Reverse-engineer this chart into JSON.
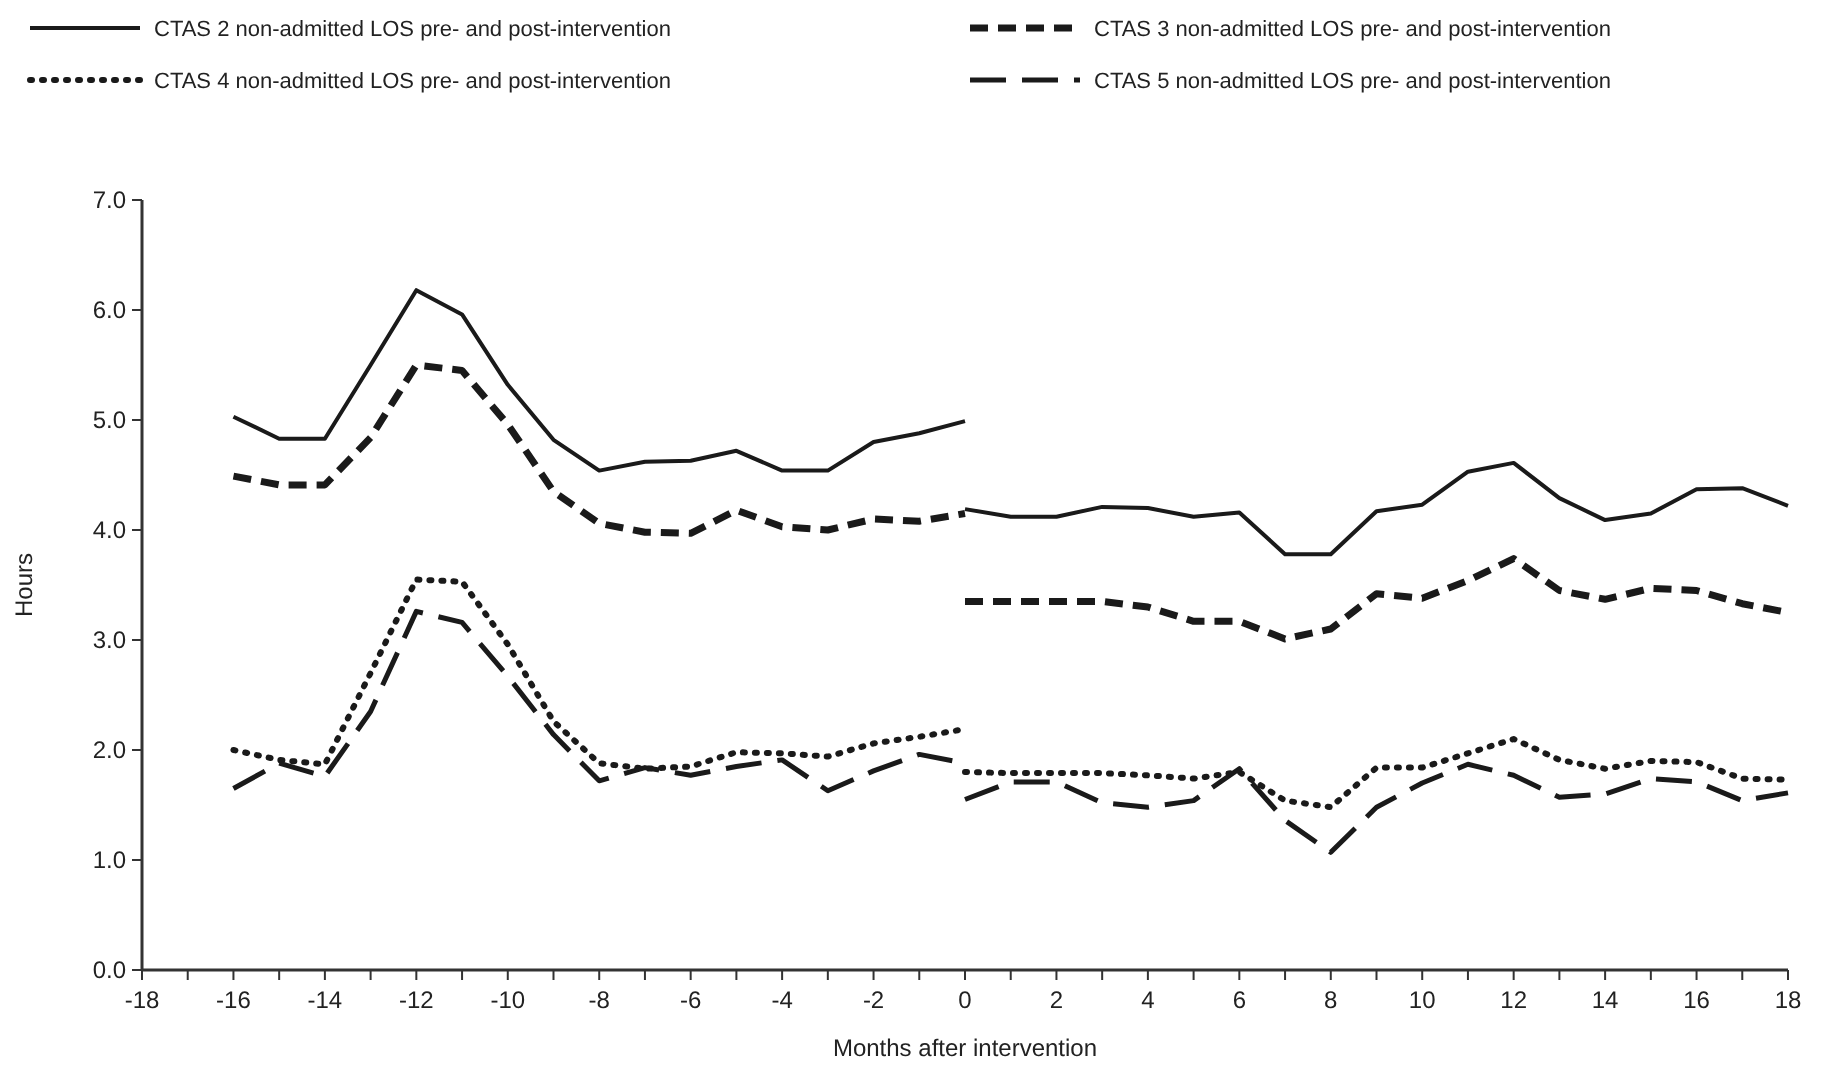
{
  "chart_data": {
    "type": "line",
    "xlabel": "Months after intervention",
    "ylabel": "Hours",
    "xlim": [
      -18,
      18
    ],
    "xticks": [
      -18,
      {
        "value": -17,
        "label": null
      },
      -16,
      {
        "value": -15,
        "label": null
      },
      -14,
      {
        "value": -13,
        "label": null
      },
      -12,
      {
        "value": -11,
        "label": null
      },
      -10,
      {
        "value": -9,
        "label": null
      },
      -8,
      {
        "value": -7,
        "label": null
      },
      -6,
      {
        "value": -5,
        "label": null
      },
      -4,
      {
        "value": -3,
        "label": null
      },
      -2,
      {
        "value": -1,
        "label": null
      },
      0,
      {
        "value": 1,
        "label": null
      },
      2,
      {
        "value": 3,
        "label": null
      },
      4,
      {
        "value": 5,
        "label": null
      },
      6,
      {
        "value": 7,
        "label": null
      },
      8,
      {
        "value": 9,
        "label": null
      },
      10,
      {
        "value": 11,
        "label": null
      },
      12,
      {
        "value": 13,
        "label": null
      },
      14,
      {
        "value": 15,
        "label": null
      },
      16,
      {
        "value": 17,
        "label": null
      },
      18
    ],
    "ylim": [
      0,
      7
    ],
    "yticks": [
      {
        "value": 0,
        "label": "0.0"
      },
      {
        "value": 1,
        "label": "1.0"
      },
      {
        "value": 2,
        "label": "2.0"
      },
      {
        "value": 3,
        "label": "3.0"
      },
      {
        "value": 4,
        "label": "4.0"
      },
      {
        "value": 5,
        "label": "5.0"
      },
      {
        "value": 6,
        "label": "6.0"
      },
      {
        "value": 7,
        "label": "7.0"
      }
    ],
    "grid": false,
    "legend": "top",
    "marker": "none",
    "series": [
      {
        "name": "CTAS 2 non-admitted LOS pre- and post-intervention",
        "color": "#1a1a1a",
        "line_style": "solid",
        "x": [
          -16,
          -15,
          -14,
          -13,
          -12,
          -11,
          -10,
          -9,
          -8,
          -7,
          -6,
          -5,
          -4,
          -3,
          -2,
          -1,
          0
        ],
        "values": [
          5.03,
          4.83,
          4.83,
          5.5,
          6.18,
          5.96,
          5.32,
          4.82,
          4.54,
          4.62,
          4.63,
          4.72,
          4.54,
          4.54,
          4.8,
          4.88,
          4.99
        ]
      },
      {
        "name": "CTAS 3 non-admitted LOS pre- and post-intervention",
        "color": "#1a1a1a",
        "line_style": "dashed",
        "x": [
          -16,
          -15,
          -14,
          -13,
          -12,
          -11,
          -10,
          -9,
          -8,
          -7,
          -6,
          -5,
          -4,
          -3,
          -2,
          -1,
          0
        ],
        "values": [
          4.49,
          4.41,
          4.41,
          4.84,
          5.5,
          5.45,
          4.96,
          4.35,
          4.06,
          3.98,
          3.97,
          4.18,
          4.03,
          4.0,
          4.1,
          4.08,
          4.15
        ]
      },
      {
        "name": "CTAS 4 non-admitted LOS pre- and post-intervention",
        "color": "#1a1a1a",
        "line_style": "dotted",
        "x": [
          -16,
          -15,
          -14,
          -13,
          -12,
          -11,
          -10,
          -9,
          -8,
          -7,
          -6,
          -5,
          -4,
          -3,
          -2,
          -1,
          0
        ],
        "values": [
          2.0,
          1.91,
          1.87,
          2.7,
          3.55,
          3.53,
          2.96,
          2.26,
          1.88,
          1.83,
          1.85,
          1.98,
          1.97,
          1.94,
          2.06,
          2.12,
          2.19
        ]
      },
      {
        "name": "CTAS 5 non-admitted LOS pre- and post-intervention",
        "color": "#1a1a1a",
        "line_style": "dashed",
        "x": [
          -16,
          -15,
          -14,
          -13,
          -12,
          -11,
          -10,
          -9,
          -8,
          -7,
          -6,
          -5,
          -4,
          -3,
          -2,
          -1,
          0
        ],
        "values": [
          1.65,
          1.88,
          1.76,
          2.35,
          3.26,
          3.16,
          2.67,
          2.14,
          1.72,
          1.84,
          1.77,
          1.85,
          1.91,
          1.63,
          1.81,
          1.96,
          1.88
        ]
      },
      {
        "color": "#1a1a1a",
        "line_style": "solid",
        "x": [
          0,
          1,
          2,
          3,
          4,
          5,
          6,
          7,
          8,
          9,
          10,
          11,
          12,
          13,
          14,
          15,
          16,
          17,
          18
        ],
        "values": [
          4.19,
          4.12,
          4.12,
          4.21,
          4.2,
          4.12,
          4.16,
          3.78,
          3.78,
          4.17,
          4.23,
          4.53,
          4.61,
          4.29,
          4.09,
          4.15,
          4.37,
          4.38,
          4.22
        ]
      },
      {
        "color": "#1a1a1a",
        "line_style": "dashed",
        "x": [
          0,
          1,
          2,
          3,
          4,
          5,
          6,
          7,
          8,
          9,
          10,
          11,
          12,
          13,
          14,
          15,
          16,
          17,
          18
        ],
        "values": [
          3.35,
          3.35,
          3.35,
          3.35,
          3.3,
          3.17,
          3.17,
          3.01,
          3.1,
          3.42,
          3.38,
          3.54,
          3.74,
          3.45,
          3.37,
          3.47,
          3.45,
          3.33,
          3.25
        ]
      },
      {
        "color": "#1a1a1a",
        "line_style": "dotted",
        "x": [
          0,
          1,
          2,
          3,
          4,
          5,
          6,
          7,
          8,
          9,
          10,
          11,
          12,
          13,
          14,
          15,
          16,
          17,
          18
        ],
        "values": [
          1.8,
          1.79,
          1.79,
          1.79,
          1.77,
          1.74,
          1.8,
          1.54,
          1.48,
          1.84,
          1.84,
          1.97,
          2.1,
          1.91,
          1.83,
          1.9,
          1.89,
          1.74,
          1.73
        ]
      },
      {
        "color": "#1a1a1a",
        "line_style": "dashed",
        "x": [
          0,
          1,
          2,
          3,
          4,
          5,
          6,
          7,
          8,
          9,
          10,
          11,
          12,
          13,
          14,
          15,
          16,
          17,
          18
        ],
        "values": [
          1.55,
          1.71,
          1.71,
          1.52,
          1.48,
          1.54,
          1.83,
          1.36,
          1.07,
          1.48,
          1.7,
          1.87,
          1.77,
          1.57,
          1.6,
          1.74,
          1.71,
          1.54,
          1.61
        ]
      }
    ]
  }
}
